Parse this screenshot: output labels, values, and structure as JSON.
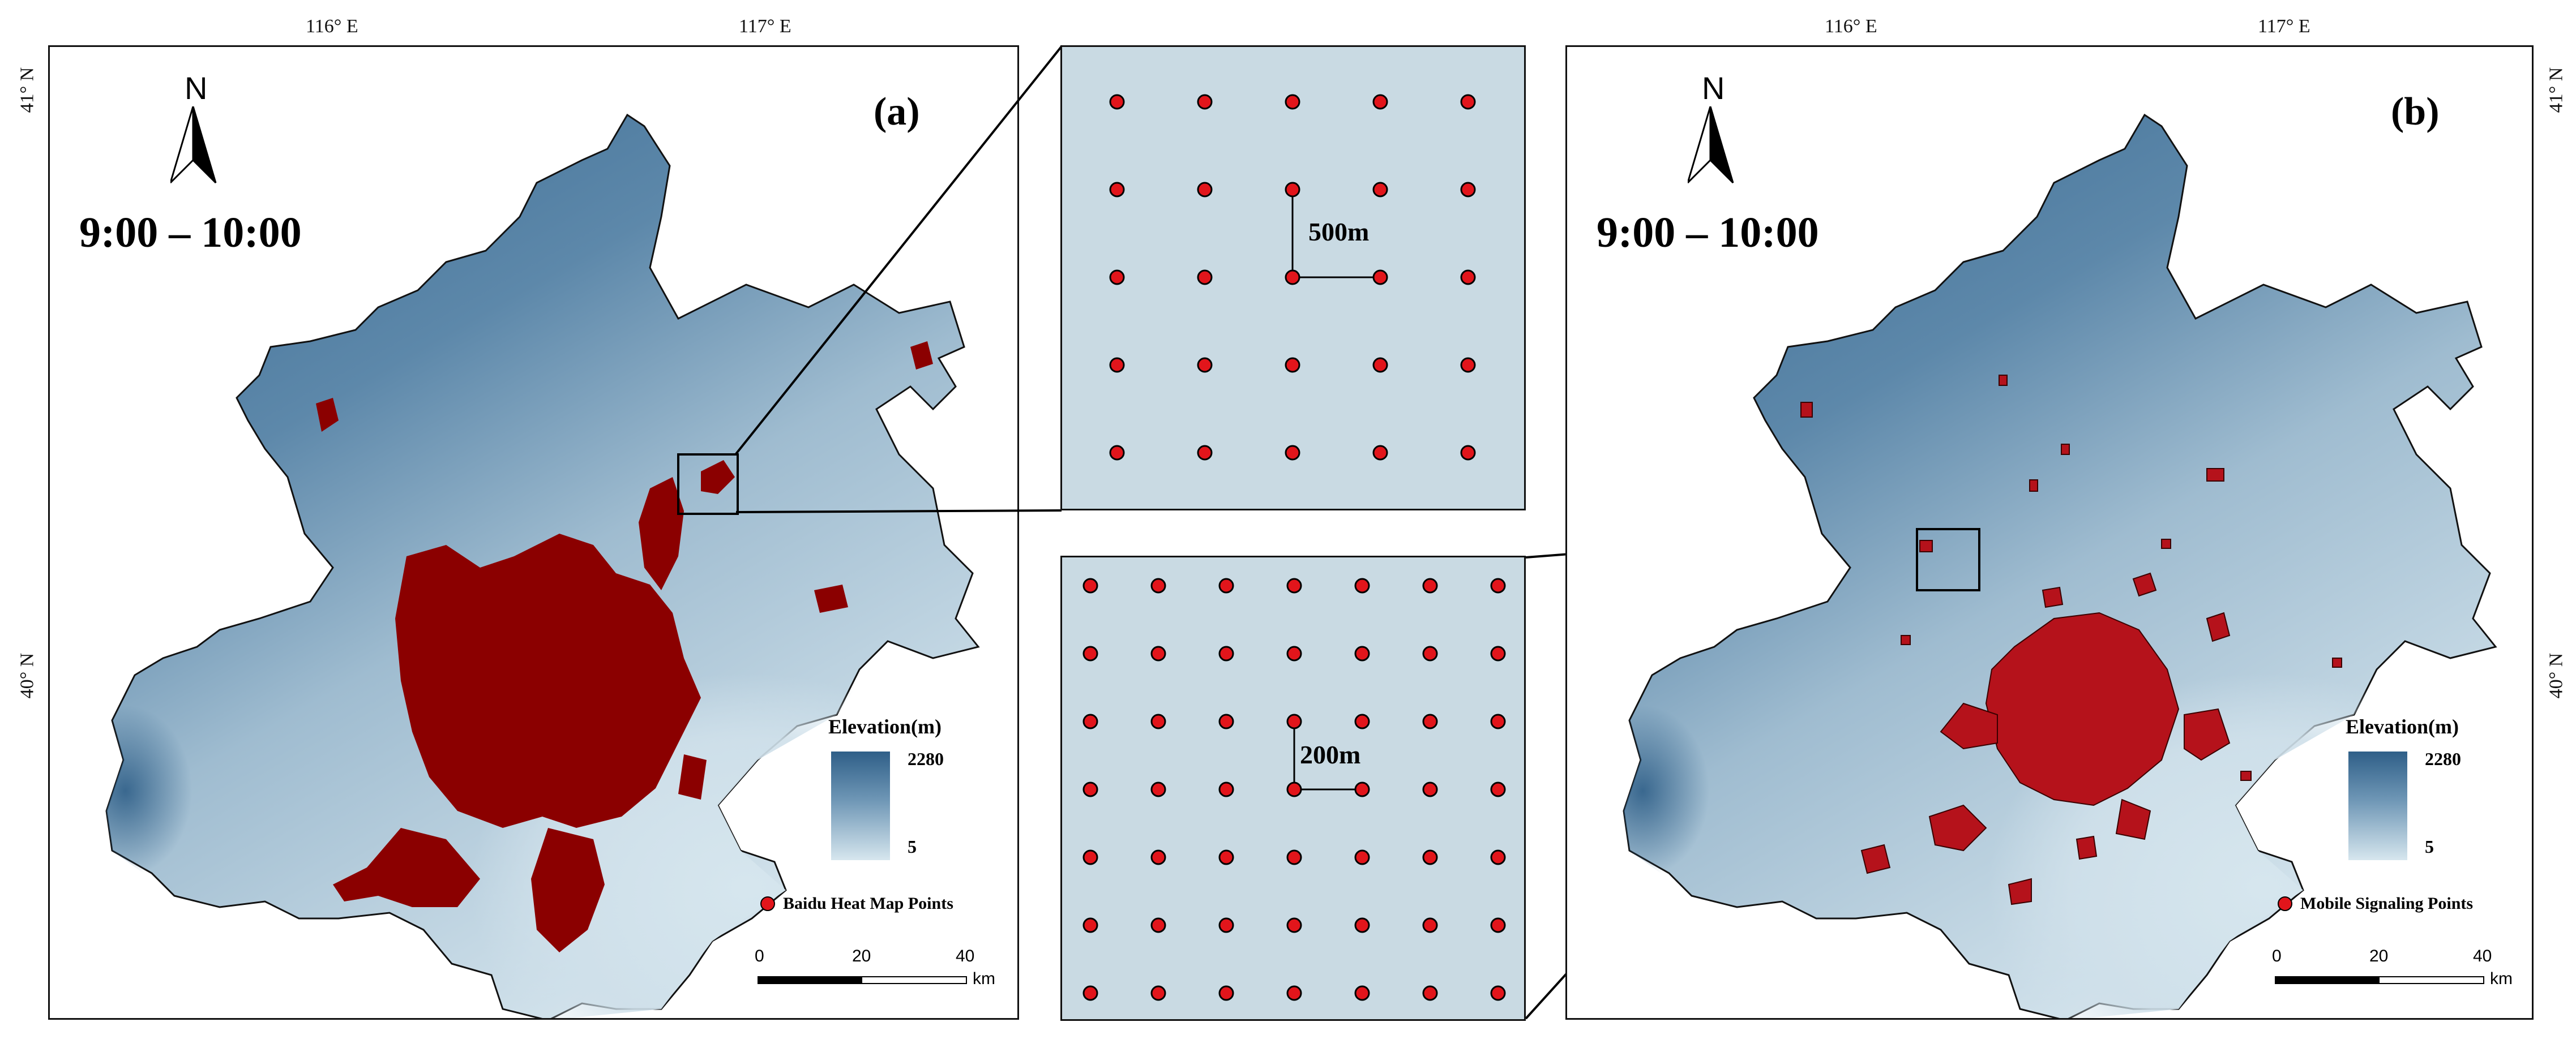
{
  "axes": {
    "lon_labels": [
      "116° E",
      "117° E"
    ],
    "lat_labels": [
      "41° N",
      "40° N"
    ]
  },
  "panels": [
    {
      "letter": "(a)",
      "time": "9:00 – 10:00",
      "north": "N",
      "legend_title": "Elevation(m)",
      "elev_max": "2280",
      "elev_min": "5",
      "point_label": "Baidu Heat Map Points",
      "scale": {
        "ticks": [
          "0",
          "20",
          "40"
        ],
        "unit": "km"
      }
    },
    {
      "letter": "(b)",
      "time": "9:00 – 10:00",
      "north": "N",
      "legend_title": "Elevation(m)",
      "elev_max": "2280",
      "elev_min": "5",
      "point_label": "Mobile Signaling Points",
      "scale": {
        "ticks": [
          "0",
          "20",
          "40"
        ],
        "unit": "km"
      }
    }
  ],
  "zooms": [
    {
      "spacing_label": "500m",
      "grid_rows": 5,
      "grid_cols": 5
    },
    {
      "spacing_label": "200m",
      "grid_rows": 7,
      "grid_cols": 7
    }
  ],
  "colors": {
    "elevation_high": "#2f5f88",
    "elevation_low": "#d6e6ee",
    "baidu_points": "#8b0000",
    "mobile_points": "#b5121b",
    "grid_point": "#e2151b",
    "zoom_background": "#c9dae3"
  }
}
